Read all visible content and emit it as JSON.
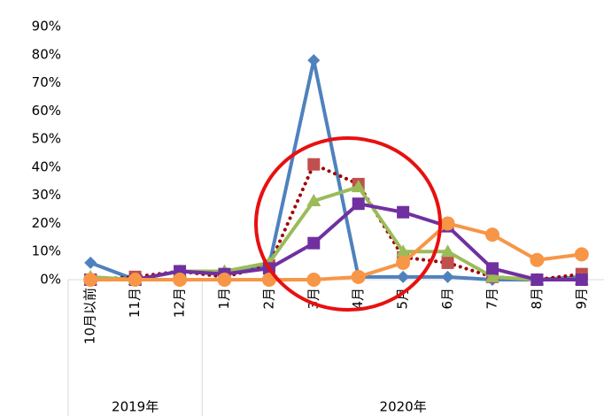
{
  "chart_data": {
    "type": "line",
    "categories": [
      "10月以前",
      "11月",
      "12月",
      "1月",
      "2月",
      "3月",
      "4月",
      "5月",
      "6月",
      "7月",
      "8月",
      "9月"
    ],
    "groups": [
      {
        "name": "2019年",
        "count": 3
      },
      {
        "name": "2020年",
        "count": 9
      }
    ],
    "ylim": [
      0,
      90
    ],
    "yticks": [
      {
        "value": 0,
        "label": "0%"
      },
      {
        "value": 10,
        "label": "10%"
      },
      {
        "value": 20,
        "label": "20%"
      },
      {
        "value": 30,
        "label": "30%"
      },
      {
        "value": 40,
        "label": "40%"
      },
      {
        "value": 50,
        "label": "50%"
      },
      {
        "value": 60,
        "label": "60%"
      },
      {
        "value": 70,
        "label": "70%"
      },
      {
        "value": 80,
        "label": "80%"
      },
      {
        "value": 90,
        "label": "90%"
      }
    ],
    "grid": false,
    "series": [
      {
        "color": "#4f81bd",
        "marker": "diamond",
        "dash": "solid",
        "values": [
          6,
          0,
          3,
          2,
          5,
          78,
          1,
          1,
          1,
          0,
          0,
          1
        ]
      },
      {
        "color": "#c0504d",
        "line_color": "#a00000",
        "marker": "square",
        "dash": "dotted",
        "values": [
          0,
          1,
          3,
          1,
          5,
          41,
          34,
          8,
          6,
          1,
          0,
          2
        ]
      },
      {
        "color": "#9bbb59",
        "marker": "triangle",
        "dash": "solid",
        "values": [
          1,
          0,
          3,
          3,
          6,
          28,
          33,
          10,
          10,
          1,
          0,
          0
        ]
      },
      {
        "color": "#7030a0",
        "marker": "square",
        "dash": "solid",
        "values": [
          0,
          0,
          3,
          2,
          4,
          13,
          27,
          24,
          19,
          4,
          0,
          0
        ]
      },
      {
        "color": "#f79646",
        "marker": "circle",
        "dash": "solid",
        "values": [
          0,
          0,
          0,
          0,
          0,
          0,
          1,
          6,
          20,
          16,
          7,
          9
        ]
      }
    ]
  }
}
